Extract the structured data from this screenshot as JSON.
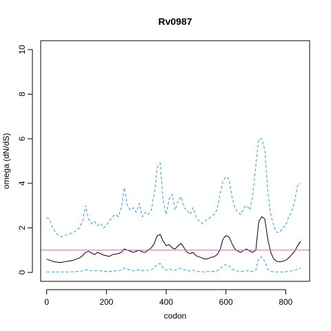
{
  "chart_data": {
    "type": "line",
    "title": "Rv0987",
    "xlabel": "codon",
    "ylabel": "omega (dN/dS)",
    "xlim": [
      -20,
      880
    ],
    "ylim": [
      -0.4,
      10.4
    ],
    "xticks": [
      0,
      200,
      400,
      600,
      800
    ],
    "yticks": [
      0,
      2,
      4,
      6,
      8,
      10
    ],
    "grid": false,
    "reference_line": {
      "y": 1,
      "color": "#c266c2"
    },
    "series": [
      {
        "style": "solid",
        "color": "#000000",
        "x": [
          0,
          10,
          20,
          30,
          40,
          50,
          60,
          70,
          80,
          90,
          100,
          110,
          120,
          130,
          140,
          150,
          160,
          170,
          180,
          190,
          200,
          210,
          220,
          230,
          240,
          250,
          260,
          270,
          280,
          290,
          300,
          310,
          320,
          330,
          340,
          350,
          360,
          370,
          380,
          390,
          400,
          410,
          420,
          430,
          440,
          450,
          460,
          470,
          480,
          490,
          500,
          510,
          520,
          530,
          540,
          550,
          560,
          570,
          580,
          590,
          600,
          610,
          620,
          630,
          640,
          650,
          660,
          670,
          680,
          690,
          700,
          710,
          720,
          730,
          740,
          750,
          760,
          770,
          780,
          790,
          800,
          810,
          820,
          830,
          840,
          850
        ],
        "y": [
          0.6,
          0.55,
          0.5,
          0.47,
          0.45,
          0.45,
          0.48,
          0.5,
          0.52,
          0.55,
          0.6,
          0.65,
          0.75,
          0.9,
          0.95,
          0.88,
          0.8,
          0.9,
          0.85,
          0.78,
          0.75,
          0.72,
          0.8,
          0.82,
          0.85,
          0.9,
          1.05,
          1.0,
          0.95,
          0.9,
          0.95,
          1.0,
          0.92,
          0.9,
          1.0,
          1.1,
          1.3,
          1.65,
          1.7,
          1.4,
          1.2,
          1.25,
          1.1,
          1.05,
          1.2,
          1.3,
          1.1,
          0.9,
          0.85,
          0.9,
          0.75,
          0.7,
          0.65,
          0.6,
          0.62,
          0.68,
          0.7,
          0.8,
          1.0,
          1.5,
          1.65,
          1.6,
          1.3,
          1.05,
          0.95,
          0.9,
          1.0,
          1.05,
          0.95,
          0.9,
          1.0,
          2.3,
          2.5,
          2.4,
          1.5,
          0.9,
          0.6,
          0.5,
          0.48,
          0.5,
          0.55,
          0.65,
          0.8,
          0.95,
          1.2,
          1.4
        ]
      },
      {
        "style": "dashed",
        "color": "#2b9bdc",
        "x": [
          0,
          10,
          20,
          30,
          40,
          50,
          60,
          70,
          80,
          90,
          100,
          110,
          120,
          130,
          140,
          150,
          160,
          170,
          180,
          190,
          200,
          210,
          220,
          230,
          240,
          250,
          260,
          270,
          280,
          290,
          300,
          310,
          320,
          330,
          340,
          350,
          360,
          370,
          380,
          390,
          400,
          410,
          420,
          430,
          440,
          450,
          460,
          470,
          480,
          490,
          500,
          510,
          520,
          530,
          540,
          550,
          560,
          570,
          580,
          590,
          600,
          610,
          620,
          630,
          640,
          650,
          660,
          670,
          680,
          690,
          700,
          710,
          720,
          730,
          740,
          750,
          760,
          770,
          780,
          790,
          800,
          810,
          820,
          830,
          840,
          850
        ],
        "y": [
          2.45,
          2.4,
          2.0,
          1.8,
          1.65,
          1.6,
          1.65,
          1.7,
          1.75,
          1.8,
          1.9,
          2.0,
          2.3,
          3.0,
          2.4,
          2.2,
          2.3,
          2.1,
          2.2,
          2.0,
          2.1,
          2.3,
          2.5,
          2.6,
          2.5,
          2.9,
          3.8,
          3.0,
          2.8,
          2.9,
          2.7,
          3.1,
          2.5,
          2.7,
          2.6,
          2.8,
          3.5,
          4.7,
          4.9,
          3.2,
          2.6,
          3.3,
          3.5,
          2.8,
          3.2,
          3.4,
          2.9,
          2.8,
          2.6,
          2.9,
          2.5,
          2.3,
          2.2,
          2.3,
          2.4,
          2.5,
          2.6,
          2.8,
          3.5,
          4.1,
          4.3,
          4.2,
          3.4,
          2.9,
          2.7,
          2.6,
          2.9,
          3.0,
          2.8,
          3.5,
          4.8,
          6.0,
          6.0,
          5.5,
          3.6,
          2.6,
          2.1,
          1.8,
          1.8,
          2.0,
          2.1,
          2.5,
          2.7,
          3.2,
          3.9,
          4.0
        ]
      },
      {
        "style": "dashed",
        "color": "#2b9bdc",
        "x": [
          0,
          10,
          20,
          30,
          40,
          50,
          60,
          70,
          80,
          90,
          100,
          110,
          120,
          130,
          140,
          150,
          160,
          170,
          180,
          190,
          200,
          210,
          220,
          230,
          240,
          250,
          260,
          270,
          280,
          290,
          300,
          310,
          320,
          330,
          340,
          350,
          360,
          370,
          380,
          390,
          400,
          410,
          420,
          430,
          440,
          450,
          460,
          470,
          480,
          490,
          500,
          510,
          520,
          530,
          540,
          550,
          560,
          570,
          580,
          590,
          600,
          610,
          620,
          630,
          640,
          650,
          660,
          670,
          680,
          690,
          700,
          710,
          720,
          730,
          740,
          750,
          760,
          770,
          780,
          790,
          800,
          810,
          820,
          830,
          840,
          850
        ],
        "y": [
          0.02,
          0.02,
          0.02,
          0.02,
          0.02,
          0.02,
          0.02,
          0.02,
          0.03,
          0.03,
          0.04,
          0.05,
          0.07,
          0.12,
          0.1,
          0.08,
          0.07,
          0.09,
          0.07,
          0.05,
          0.05,
          0.05,
          0.06,
          0.07,
          0.08,
          0.1,
          0.2,
          0.15,
          0.1,
          0.08,
          0.1,
          0.12,
          0.08,
          0.08,
          0.1,
          0.12,
          0.2,
          0.35,
          0.4,
          0.2,
          0.1,
          0.15,
          0.12,
          0.1,
          0.15,
          0.2,
          0.12,
          0.08,
          0.07,
          0.1,
          0.05,
          0.04,
          0.03,
          0.03,
          0.04,
          0.05,
          0.05,
          0.08,
          0.15,
          0.3,
          0.35,
          0.3,
          0.15,
          0.08,
          0.06,
          0.05,
          0.06,
          0.08,
          0.05,
          0.05,
          0.1,
          0.65,
          0.7,
          0.5,
          0.15,
          0.05,
          0.03,
          0.02,
          0.02,
          0.02,
          0.03,
          0.05,
          0.07,
          0.1,
          0.15,
          0.2
        ]
      }
    ]
  }
}
